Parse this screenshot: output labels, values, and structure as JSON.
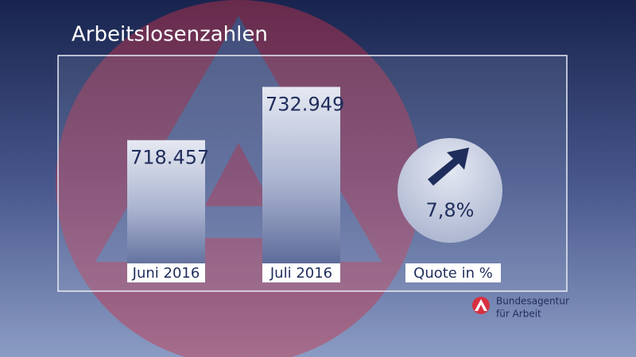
{
  "chart_data": {
    "type": "bar",
    "title": "Arbeitslosenzahlen",
    "categories": [
      "Juni 2016",
      "Juli 2016"
    ],
    "values": [
      718457,
      732949
    ],
    "value_labels": [
      "718.457",
      "732.949"
    ],
    "ylim": [
      680000,
      735000
    ],
    "quote": {
      "label": "Quote in %",
      "value": 7.8,
      "value_label": "7,8%"
    },
    "source": [
      "Bundesagentur",
      "für Arbeit"
    ]
  }
}
